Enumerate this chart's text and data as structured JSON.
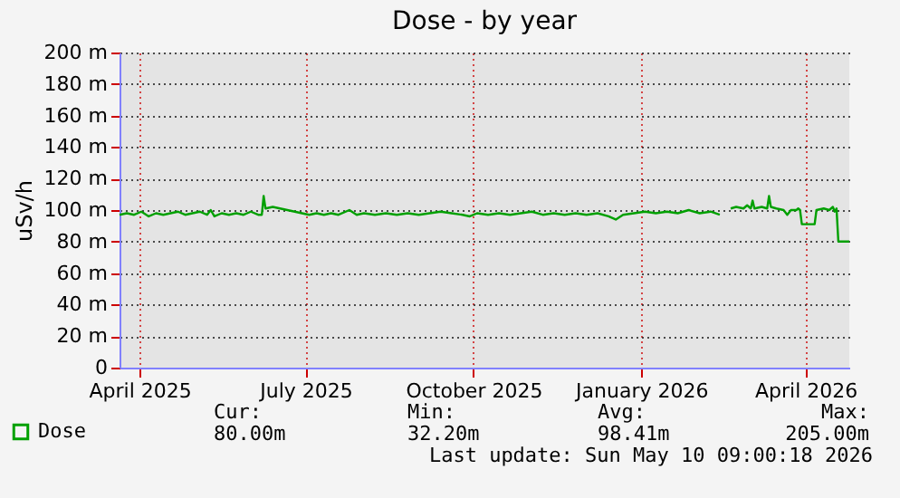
{
  "chart_data": {
    "type": "line",
    "title": "Dose - by year",
    "ylabel": "uSv/h",
    "x": [
      "2025-04-05",
      "2025-04-09",
      "2025-04-13",
      "2025-04-17",
      "2025-04-21",
      "2025-04-25",
      "2025-04-29",
      "2025-05-03",
      "2025-05-07",
      "2025-05-11",
      "2025-05-15",
      "2025-05-19",
      "2025-05-23",
      "2025-05-25",
      "2025-05-27",
      "2025-05-31",
      "2025-06-04",
      "2025-06-08",
      "2025-06-12",
      "2025-06-16",
      "2025-06-20",
      "2025-06-22",
      "2025-06-23",
      "2025-06-24",
      "2025-06-28",
      "2025-07-02",
      "2025-07-06",
      "2025-07-10",
      "2025-07-14",
      "2025-07-18",
      "2025-07-22",
      "2025-07-26",
      "2025-07-30",
      "2025-08-03",
      "2025-08-09",
      "2025-08-13",
      "2025-08-17",
      "2025-08-23",
      "2025-08-29",
      "2025-09-04",
      "2025-09-10",
      "2025-09-16",
      "2025-09-22",
      "2025-09-28",
      "2025-10-04",
      "2025-10-10",
      "2025-10-14",
      "2025-10-18",
      "2025-10-24",
      "2025-10-30",
      "2025-11-05",
      "2025-11-11",
      "2025-11-17",
      "2025-11-23",
      "2025-11-29",
      "2025-12-05",
      "2025-12-11",
      "2025-12-17",
      "2025-12-23",
      "2025-12-29",
      "2026-01-02",
      "2026-01-06",
      "2026-01-12",
      "2026-01-18",
      "2026-01-24",
      "2026-01-30",
      "2026-02-05",
      "2026-02-11",
      "2026-02-17",
      "2026-02-23",
      "2026-02-28",
      "2026-03-02",
      "2026-03-06",
      "2026-03-09",
      "2026-03-13",
      "2026-03-15",
      "2026-03-17",
      "2026-03-18",
      "2026-03-19",
      "2026-03-23",
      "2026-03-26",
      "2026-03-27",
      "2026-03-28",
      "2026-03-31",
      "2026-04-04",
      "2026-04-06",
      "2026-04-08",
      "2026-04-11",
      "2026-04-12",
      "2026-04-13",
      "2026-04-14",
      "2026-04-21",
      "2026-04-22",
      "2026-04-26",
      "2026-04-29",
      "2026-05-01",
      "2026-05-02",
      "2026-05-03",
      "2026-05-04",
      "2026-05-10"
    ],
    "series": [
      {
        "name": "Dose",
        "color": "#00a000",
        "values": [
          97,
          98,
          97,
          99,
          96,
          98,
          97,
          98,
          99,
          97,
          98,
          99,
          97,
          100,
          96,
          98,
          97,
          98,
          97,
          99,
          97,
          97,
          109,
          101,
          102,
          101,
          100,
          99,
          98,
          97,
          98,
          97,
          98,
          97,
          100,
          97,
          98,
          97,
          98,
          97,
          98,
          97,
          98,
          99,
          98,
          97,
          96,
          98,
          97,
          98,
          97,
          98,
          99,
          97,
          98,
          97,
          98,
          97,
          98,
          96,
          94,
          97,
          98,
          99,
          98,
          99,
          98,
          100,
          98,
          99,
          97,
          null,
          101,
          102,
          101,
          103,
          101,
          106,
          101,
          102,
          101,
          109,
          102,
          101,
          100,
          97,
          100,
          100,
          101,
          100,
          91,
          91,
          100,
          101,
          100,
          102,
          99,
          101,
          80,
          80
        ]
      }
    ],
    "xlim": [
      "2025-04-05",
      "2026-05-10"
    ],
    "xticks": [
      {
        "value": "2025-04-16",
        "label": "April 2025"
      },
      {
        "value": "2025-07-16",
        "label": "July 2025"
      },
      {
        "value": "2025-10-16",
        "label": "October 2025"
      },
      {
        "value": "2026-01-16",
        "label": "January 2026"
      },
      {
        "value": "2026-04-16",
        "label": "April 2026"
      }
    ],
    "ylim": [
      0,
      200
    ],
    "yticks": [
      {
        "value": 0,
        "label": "0"
      },
      {
        "value": 20,
        "label": "20 m"
      },
      {
        "value": 40,
        "label": "40 m"
      },
      {
        "value": 60,
        "label": "60 m"
      },
      {
        "value": 80,
        "label": "80 m"
      },
      {
        "value": 100,
        "label": "100 m"
      },
      {
        "value": 120,
        "label": "120 m"
      },
      {
        "value": 140,
        "label": "140 m"
      },
      {
        "value": 160,
        "label": "160 m"
      },
      {
        "value": 180,
        "label": "180 m"
      },
      {
        "value": 200,
        "label": "200 m"
      }
    ],
    "grid": true,
    "legend": "bottom left",
    "annotations": [
      "Cur:",
      "80.00m",
      "Min:",
      "32.20m",
      "Avg:",
      "98.41m",
      "Max:",
      "205.00m",
      "Last update: Sun May 10 09:00:18 2026"
    ]
  }
}
